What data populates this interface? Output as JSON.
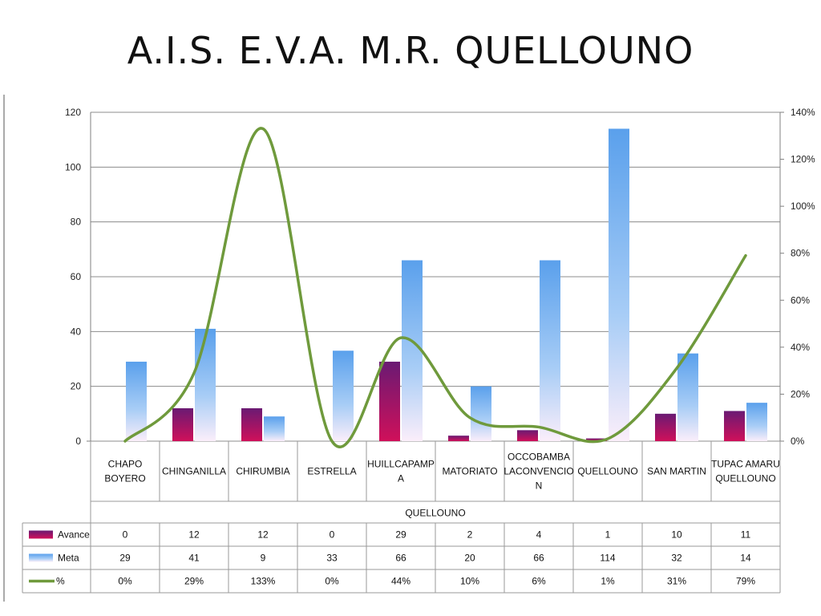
{
  "slide": {
    "title": "A.I.S.  E.V.A.  M.R. QUELLOUNO"
  },
  "colors": {
    "avance": "#8b1668",
    "meta": "#5aa0ec",
    "line": "#6f9a3c",
    "grid": "#8c8c8c",
    "axis": "#808080"
  },
  "chart_data": {
    "type": "bar",
    "title": "",
    "group_label": "QUELLOUNO",
    "categories": [
      [
        "CHAPO",
        "BOYERO"
      ],
      [
        "CHINGANILLA"
      ],
      [
        "CHIRUMBIA"
      ],
      [
        "ESTRELLA"
      ],
      [
        "HUILLCAPAMP",
        "A"
      ],
      [
        "MATORIATO"
      ],
      [
        "OCCOBAMBA",
        "LACONVENCIO",
        "N"
      ],
      [
        "QUELLOUNO"
      ],
      [
        "SAN MARTIN"
      ],
      [
        "TUPAC AMARU",
        "QUELLOUNO"
      ]
    ],
    "series": [
      {
        "name": "Avance",
        "type": "bar",
        "axis": "left",
        "values": [
          0,
          12,
          12,
          0,
          29,
          2,
          4,
          1,
          10,
          11
        ]
      },
      {
        "name": "Meta",
        "type": "bar",
        "axis": "left",
        "values": [
          29,
          41,
          9,
          33,
          66,
          20,
          66,
          114,
          32,
          14
        ]
      },
      {
        "name": "%",
        "type": "line",
        "axis": "right",
        "values": [
          0,
          29,
          133,
          0,
          44,
          10,
          6,
          1,
          31,
          79
        ]
      }
    ],
    "table_rows": [
      [
        "0",
        "12",
        "12",
        "0",
        "29",
        "2",
        "4",
        "1",
        "10",
        "11"
      ],
      [
        "29",
        "41",
        "9",
        "33",
        "66",
        "20",
        "66",
        "114",
        "32",
        "14"
      ],
      [
        "0%",
        "29%",
        "133%",
        "0%",
        "44%",
        "10%",
        "6%",
        "1%",
        "31%",
        "79%"
      ]
    ],
    "y_left": {
      "min": 0,
      "max": 120,
      "ticks": [
        "0",
        "20",
        "40",
        "60",
        "80",
        "100",
        "120"
      ]
    },
    "y_right": {
      "min": 0,
      "max": 140,
      "ticks": [
        "0%",
        "20%",
        "40%",
        "60%",
        "80%",
        "100%",
        "120%",
        "140%"
      ]
    },
    "grid": true,
    "legend_position": "data-table"
  }
}
